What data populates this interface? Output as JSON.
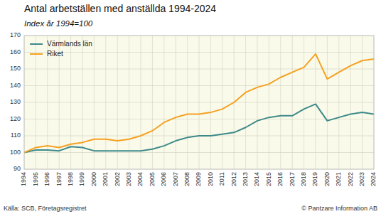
{
  "chart_data": {
    "type": "line",
    "title": "Antal arbetställen med anställda 1994-2024",
    "subtitle": "Index år 1994=100",
    "x": [
      1994,
      1995,
      1996,
      1997,
      1998,
      1999,
      2000,
      2001,
      2002,
      2003,
      2004,
      2005,
      2006,
      2007,
      2008,
      2009,
      2010,
      2011,
      2012,
      2013,
      2014,
      2015,
      2016,
      2017,
      2018,
      2019,
      2020,
      2021,
      2022,
      2023,
      2024
    ],
    "series": [
      {
        "name": "Värmlands län",
        "color": "#3d8a8a",
        "values": [
          100,
          101.5,
          101.5,
          101,
          103.5,
          103,
          101,
          101,
          101,
          101,
          101,
          102,
          104,
          107,
          109,
          110,
          110,
          111,
          112,
          115,
          119,
          121,
          122,
          122,
          126,
          129,
          119,
          121,
          123,
          124,
          123
        ]
      },
      {
        "name": "Riket",
        "color": "#f5a020",
        "values": [
          100,
          103,
          104,
          103,
          105,
          106,
          108,
          108,
          107,
          108,
          110,
          113,
          118,
          121,
          123,
          123,
          124,
          126,
          130,
          136,
          139,
          141,
          145,
          148,
          151,
          159,
          144,
          148,
          152,
          155,
          156
        ]
      }
    ],
    "xlim": [
      1994,
      2024
    ],
    "xticks": [
      1994,
      1995,
      1996,
      1997,
      1998,
      1999,
      2000,
      2001,
      2002,
      2003,
      2004,
      2005,
      2006,
      2007,
      2008,
      2009,
      2010,
      2011,
      2012,
      2013,
      2014,
      2015,
      2016,
      2017,
      2018,
      2019,
      2020,
      2021,
      2022,
      2023,
      2024
    ],
    "ylim": [
      90,
      170
    ],
    "yticks": [
      90,
      100,
      110,
      120,
      130,
      140,
      150,
      160,
      170
    ],
    "grid": true,
    "legend": "upper left",
    "annotations": [
      "Källa: SCB, Företagsregistret",
      "© Pantzare Information AB"
    ]
  }
}
